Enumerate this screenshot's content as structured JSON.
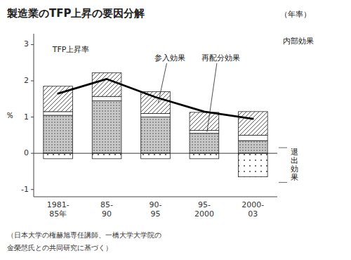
{
  "chart_data": {
    "type": "bar",
    "stacked": true,
    "title": "製造業のTFP上昇の要因分解",
    "subtitle": "（年率）",
    "ylabel": "％",
    "categories": [
      "1981-\n85年",
      "85-\n90",
      "90-\n95",
      "95-\n2000",
      "2000-\n03"
    ],
    "series": [
      {
        "name": "内部効果",
        "color": "#c8c8c8",
        "values": [
          1.05,
          1.45,
          1.0,
          0.55,
          0.35
        ]
      },
      {
        "name": "再配分効果",
        "color": "#ffffff",
        "values": [
          0.1,
          0.12,
          0.1,
          0.08,
          0.15
        ]
      },
      {
        "name": "参入効果",
        "color": "#ffffff",
        "values": [
          0.7,
          0.65,
          0.6,
          0.5,
          0.65
        ]
      },
      {
        "name": "退\n出\n効\n果",
        "color": "#ffffff",
        "values": [
          -0.15,
          -0.15,
          -0.15,
          -0.15,
          -0.65
        ]
      },
      {
        "name": "TFP上昇率",
        "type": "line",
        "color": "#000000",
        "values": [
          1.65,
          2.05,
          1.55,
          1.15,
          0.95
        ]
      }
    ],
    "ylim": [
      -1.2,
      3.3
    ],
    "yticks": [
      -1,
      0,
      1,
      2,
      3
    ],
    "grid": false,
    "annotations": [
      "（日本大学の権赫旭専任講師、一橋大学大学院の",
      "金榮愨氏との共同研究に基づく）"
    ]
  }
}
